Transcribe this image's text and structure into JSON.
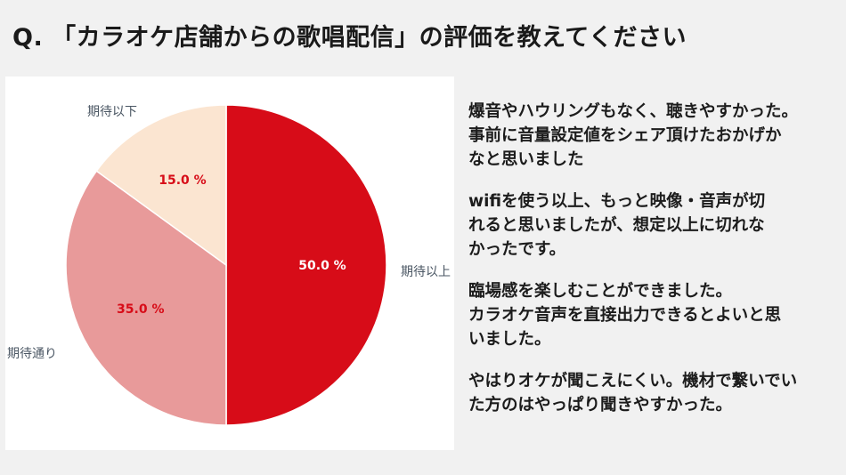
{
  "title": "Q. 「カラオケ店舗からの歌唱配信」の評価を教えてください",
  "chart_data": {
    "type": "pie",
    "slices": [
      {
        "label": "期待以上",
        "value": 50.0,
        "display": "50.0 %",
        "color": "#d70c18",
        "label_color": "#ffffff"
      },
      {
        "label": "期待通り",
        "value": 35.0,
        "display": "35.0 %",
        "color": "#e89a9a",
        "label_color": "#d70c18"
      },
      {
        "label": "期待以下",
        "value": 15.0,
        "display": "15.0 %",
        "color": "#fbe5d1",
        "label_color": "#d70c18"
      }
    ]
  },
  "comments": [
    "爆音やハウリングもなく、聴きやすかった。\n事前に音量設定値をシェア頂けたおかげか\nなと思いました",
    "wifiを使う以上、もっと映像・音声が切\nれると思いましたが、想定以上に切れな\nかったです。",
    "臨場感を楽しむことができました。\nカラオケ音声を直接出力できるとよいと思\nいました。",
    "やはりオケが聞こえにくい。機材で繋いでい\nた方のはやっぱり聞きやすかった。"
  ]
}
